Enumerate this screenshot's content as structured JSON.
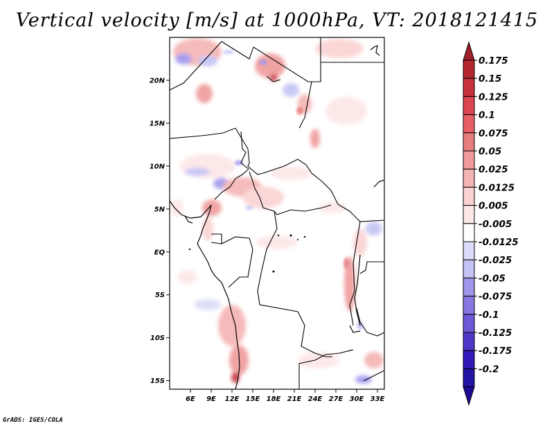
{
  "title": "Vertical velocity [m/s] at 1000hPa, VT: 2018121415",
  "footer": "GrADS: IGES/COLA",
  "map": {
    "lon_range": [
      3,
      34
    ],
    "lat_range": [
      -16,
      25
    ],
    "lat_ticks": [
      {
        "value": 20,
        "label": "20N"
      },
      {
        "value": 15,
        "label": "15N"
      },
      {
        "value": 10,
        "label": "10N"
      },
      {
        "value": 5,
        "label": "5N"
      },
      {
        "value": 0,
        "label": "EQ"
      },
      {
        "value": -5,
        "label": "5S"
      },
      {
        "value": -10,
        "label": "10S"
      },
      {
        "value": -15,
        "label": "15S"
      }
    ],
    "lon_ticks": [
      {
        "value": 6,
        "label": "6E"
      },
      {
        "value": 9,
        "label": "9E"
      },
      {
        "value": 12,
        "label": "12E"
      },
      {
        "value": 15,
        "label": "15E"
      },
      {
        "value": 18,
        "label": "18E"
      },
      {
        "value": 21,
        "label": "21E"
      },
      {
        "value": 24,
        "label": "24E"
      },
      {
        "value": 27,
        "label": "27E"
      },
      {
        "value": 30,
        "label": "30E"
      },
      {
        "value": 33,
        "label": "33E"
      }
    ]
  },
  "colorbar": {
    "levels": [
      {
        "label": "0.175",
        "color": "#b4282d"
      },
      {
        "label": "0.15",
        "color": "#c8323a"
      },
      {
        "label": "0.125",
        "color": "#dc4650"
      },
      {
        "label": "0.1",
        "color": "#e65f64"
      },
      {
        "label": "0.075",
        "color": "#e67d7d"
      },
      {
        "label": "0.05",
        "color": "#f09b9b"
      },
      {
        "label": "0.025",
        "color": "#f5b4b4"
      },
      {
        "label": "0.0125",
        "color": "#fad2d2"
      },
      {
        "label": "0.005",
        "color": "#fde6e6"
      },
      {
        "label": "-0.005",
        "color": "#ffffff"
      },
      {
        "label": "-0.0125",
        "color": "#dcdcfa"
      },
      {
        "label": "-0.025",
        "color": "#c3c3f5"
      },
      {
        "label": "-0.05",
        "color": "#a096eb"
      },
      {
        "label": "-0.075",
        "color": "#8778e1"
      },
      {
        "label": "-0.1",
        "color": "#6e5ad7"
      },
      {
        "label": "-0.125",
        "color": "#5037c8"
      },
      {
        "label": "-0.175",
        "color": "#3219b9"
      },
      {
        "label": "-0.2",
        "color": "#2314a5"
      }
    ],
    "top_arrow_color": "#a01e28",
    "bottom_arrow_color": "#1e0a96"
  }
}
